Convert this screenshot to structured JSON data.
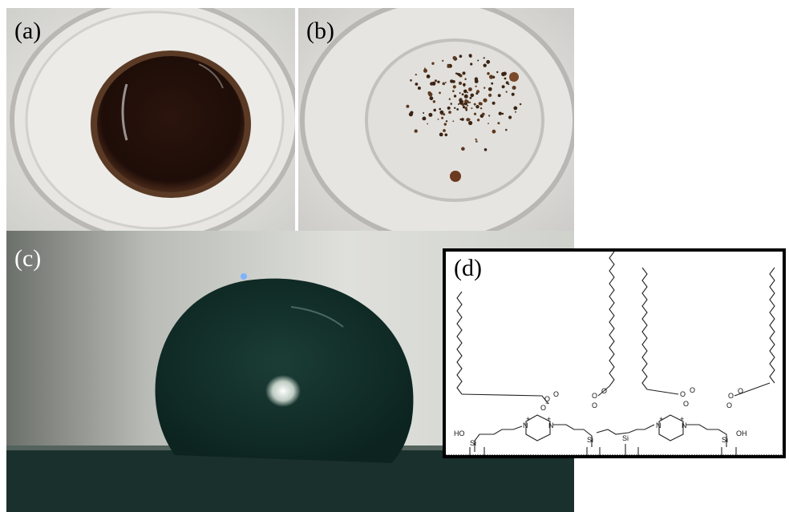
{
  "figure": {
    "panels": [
      {
        "id": "a",
        "label": "(a)",
        "content": "beaker with dark brown liquid"
      },
      {
        "id": "b",
        "label": "(b)",
        "content": "beaker with dispersed dark particles"
      },
      {
        "id": "c",
        "label": "(c)",
        "content": "water droplet contact angle"
      },
      {
        "id": "d",
        "label": "(d)",
        "content": "surface chemistry schematic"
      }
    ]
  },
  "scheme": {
    "atoms": {
      "o": "O",
      "o_minus": "O",
      "minus": "−",
      "plus": "+",
      "n": "N",
      "si": "Si",
      "ho": "HO",
      "oh": "OH"
    }
  },
  "colors": {
    "panel_d_border": "#000000",
    "droplet": "#14332c",
    "background_c": "#d9dad6"
  }
}
